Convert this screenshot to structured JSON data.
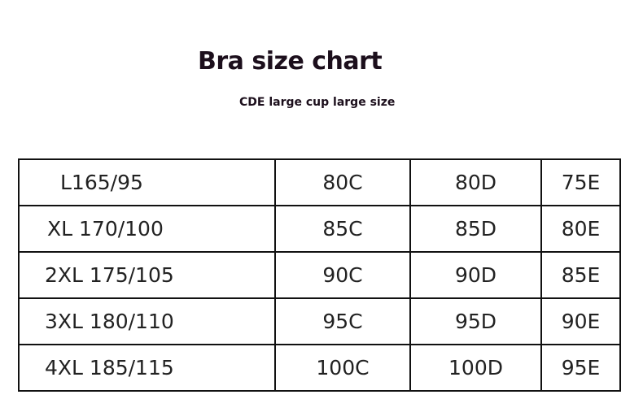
{
  "title": "Bra size chart",
  "subtitle": "CDE large cup large size",
  "rows": [
    [
      "L165/95",
      "80C",
      "80D",
      "75E"
    ],
    [
      "XL 170/100",
      "85C",
      "85D",
      "80E"
    ],
    [
      "2XL 175/105",
      "90C",
      "90D",
      "85E"
    ],
    [
      "3XL 180/110",
      "95C",
      "95D",
      "90E"
    ],
    [
      "4XL 185/115",
      "100C",
      "100D",
      "95E"
    ]
  ]
}
